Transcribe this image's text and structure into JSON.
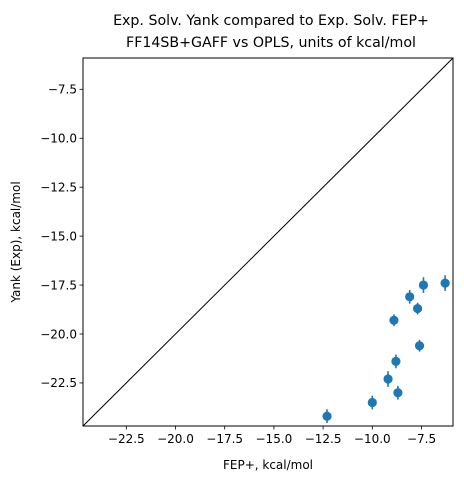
{
  "chart_data": {
    "type": "scatter",
    "title_lines": [
      "Exp. Solv. Yank compared to Exp. Solv. FEP+",
      "FF14SB+GAFF vs OPLS, units of kcal/mol"
    ],
    "xlabel": "FEP+, kcal/mol",
    "ylabel": "Yank (Exp), kcal/mol",
    "xlim": [
      -24.7,
      -5.9
    ],
    "ylim": [
      -24.7,
      -5.9
    ],
    "xticks": [
      -22.5,
      -20.0,
      -17.5,
      -15.0,
      -12.5,
      -10.0,
      -7.5
    ],
    "xtick_labels": [
      "−22.5",
      "−20.0",
      "−17.5",
      "−15.0",
      "−12.5",
      "−10.0",
      "−7.5"
    ],
    "yticks": [
      -22.5,
      -20.0,
      -17.5,
      -15.0,
      -12.5,
      -10.0,
      -7.5
    ],
    "ytick_labels": [
      "−22.5",
      "−20.0",
      "−17.5",
      "−15.0",
      "−12.5",
      "−10.0",
      "−7.5"
    ],
    "grid": false,
    "identity_line": true,
    "identity_line_color": "#000000",
    "marker_color": "#1f77b4",
    "points": [
      {
        "x": -12.3,
        "y": -24.2,
        "yerr": 0.35
      },
      {
        "x": -10.0,
        "y": -23.5,
        "yerr": 0.35
      },
      {
        "x": -9.2,
        "y": -22.3,
        "yerr": 0.4
      },
      {
        "x": -8.7,
        "y": -23.0,
        "yerr": 0.35
      },
      {
        "x": -8.8,
        "y": -21.4,
        "yerr": 0.35
      },
      {
        "x": -8.9,
        "y": -19.3,
        "yerr": 0.3
      },
      {
        "x": -8.1,
        "y": -18.1,
        "yerr": 0.35
      },
      {
        "x": -7.7,
        "y": -18.7,
        "yerr": 0.3
      },
      {
        "x": -7.6,
        "y": -20.6,
        "yerr": 0.3
      },
      {
        "x": -7.4,
        "y": -17.5,
        "yerr": 0.4
      },
      {
        "x": -6.3,
        "y": -17.4,
        "yerr": 0.4
      }
    ]
  }
}
